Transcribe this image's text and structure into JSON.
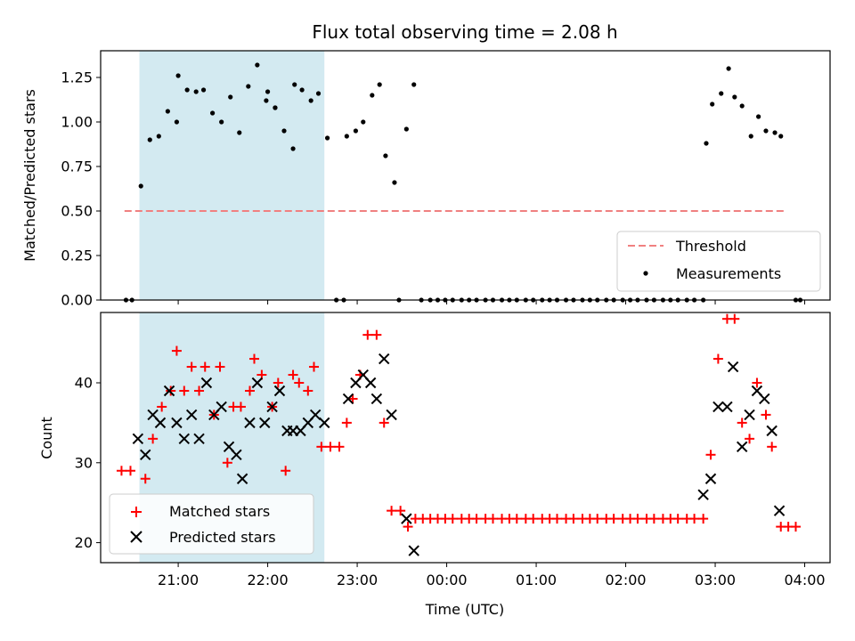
{
  "chart_data": [
    {
      "type": "scatter",
      "title": "Flux total observing time = 2.08 h",
      "xlabel": "",
      "ylabel": "Matched/Predicted stars",
      "ylim": [
        0,
        1.4
      ],
      "xlim": [
        "20:08",
        "04:17"
      ],
      "yticks": [
        "0.00",
        "0.25",
        "0.50",
        "0.75",
        "1.00",
        "1.25"
      ],
      "xtick_labels_shown": false,
      "shaded_span": [
        "20:34",
        "22:38"
      ],
      "shaded_color": "#d3eaf1",
      "threshold": {
        "value": 0.5,
        "x_range": [
          "20:24",
          "03:48"
        ],
        "color": "#f08080",
        "label": "Threshold"
      },
      "legend": {
        "position": "lower-right",
        "entries": [
          "Threshold",
          "Measurements"
        ]
      },
      "series": [
        {
          "name": "Measurements",
          "marker": "dot",
          "color": "#000000",
          "points": [
            [
              "20:25",
              0.0
            ],
            [
              "20:29",
              0.0
            ],
            [
              "20:35",
              0.64
            ],
            [
              "20:41",
              0.9
            ],
            [
              "20:47",
              0.92
            ],
            [
              "20:53",
              1.06
            ],
            [
              "20:59",
              1.0
            ],
            [
              "21:00",
              1.26
            ],
            [
              "21:06",
              1.18
            ],
            [
              "21:12",
              1.17
            ],
            [
              "21:17",
              1.18
            ],
            [
              "21:23",
              1.05
            ],
            [
              "21:29",
              1.0
            ],
            [
              "21:35",
              1.14
            ],
            [
              "21:41",
              0.94
            ],
            [
              "21:47",
              1.2
            ],
            [
              "21:53",
              1.32
            ],
            [
              "21:59",
              1.12
            ],
            [
              "22:05",
              1.08
            ],
            [
              "22:00",
              1.17
            ],
            [
              "22:05",
              1.08
            ],
            [
              "22:11",
              0.95
            ],
            [
              "22:17",
              0.85
            ],
            [
              "22:18",
              1.21
            ],
            [
              "22:23",
              1.18
            ],
            [
              "22:29",
              1.12
            ],
            [
              "22:34",
              1.16
            ],
            [
              "22:40",
              0.91
            ],
            [
              "22:46",
              0.0
            ],
            [
              "22:51",
              0.0
            ],
            [
              "22:53",
              0.92
            ],
            [
              "22:59",
              0.95
            ],
            [
              "23:04",
              1.0
            ],
            [
              "23:10",
              1.15
            ],
            [
              "23:15",
              1.21
            ],
            [
              "23:19",
              0.81
            ],
            [
              "23:25",
              0.66
            ],
            [
              "23:28",
              0.0
            ],
            [
              "23:33",
              0.96
            ],
            [
              "23:38",
              1.21
            ],
            [
              "23:43",
              0.0
            ],
            [
              "23:49",
              0.0
            ],
            [
              "23:54",
              0.0
            ],
            [
              "23:59",
              0.0
            ],
            [
              "00:04",
              0.0
            ],
            [
              "00:10",
              0.0
            ],
            [
              "00:15",
              0.0
            ],
            [
              "00:20",
              0.0
            ],
            [
              "00:26",
              0.0
            ],
            [
              "00:31",
              0.0
            ],
            [
              "00:37",
              0.0
            ],
            [
              "00:42",
              0.0
            ],
            [
              "00:47",
              0.0
            ],
            [
              "00:53",
              0.0
            ],
            [
              "00:58",
              0.0
            ],
            [
              "01:04",
              0.0
            ],
            [
              "01:09",
              0.0
            ],
            [
              "01:14",
              0.0
            ],
            [
              "01:20",
              0.0
            ],
            [
              "01:25",
              0.0
            ],
            [
              "01:31",
              0.0
            ],
            [
              "01:36",
              0.0
            ],
            [
              "01:41",
              0.0
            ],
            [
              "01:47",
              0.0
            ],
            [
              "01:52",
              0.0
            ],
            [
              "01:58",
              0.0
            ],
            [
              "02:03",
              0.0
            ],
            [
              "02:08",
              0.0
            ],
            [
              "02:14",
              0.0
            ],
            [
              "02:19",
              0.0
            ],
            [
              "02:25",
              0.0
            ],
            [
              "02:30",
              0.0
            ],
            [
              "02:35",
              0.0
            ],
            [
              "02:41",
              0.0
            ],
            [
              "02:46",
              0.0
            ],
            [
              "02:52",
              0.0
            ],
            [
              "02:54",
              0.88
            ],
            [
              "02:58",
              1.1
            ],
            [
              "03:04",
              1.16
            ],
            [
              "03:09",
              1.3
            ],
            [
              "03:13",
              1.14
            ],
            [
              "03:18",
              1.09
            ],
            [
              "03:24",
              0.92
            ],
            [
              "03:29",
              1.03
            ],
            [
              "03:34",
              0.95
            ],
            [
              "03:40",
              0.94
            ],
            [
              "03:44",
              0.92
            ],
            [
              "03:54",
              0.0
            ],
            [
              "03:57",
              0.0
            ]
          ]
        }
      ]
    },
    {
      "type": "scatter",
      "title": "",
      "xlabel": "Time (UTC)",
      "ylabel": "Count",
      "ylim": [
        17.5,
        48.8
      ],
      "xlim": [
        "20:08",
        "04:17"
      ],
      "yticks": [
        "20",
        "30",
        "40"
      ],
      "xticks": [
        "21:00",
        "22:00",
        "23:00",
        "00:00",
        "01:00",
        "02:00",
        "03:00",
        "04:00"
      ],
      "shaded_span": [
        "20:34",
        "22:38"
      ],
      "shaded_color": "#d3eaf1",
      "legend": {
        "position": "lower-left",
        "entries": [
          "Matched stars",
          "Predicted stars"
        ]
      },
      "series": [
        {
          "name": "Matched stars",
          "marker": "plus",
          "color": "#ff0000",
          "points": [
            [
              "20:22",
              29
            ],
            [
              "20:28",
              29
            ],
            [
              "20:38",
              28
            ],
            [
              "20:43",
              33
            ],
            [
              "20:49",
              37
            ],
            [
              "20:55",
              39
            ],
            [
              "20:59",
              44
            ],
            [
              "21:04",
              39
            ],
            [
              "21:09",
              42
            ],
            [
              "21:14",
              39
            ],
            [
              "21:18",
              42
            ],
            [
              "21:24",
              36
            ],
            [
              "21:28",
              42
            ],
            [
              "21:33",
              30
            ],
            [
              "21:37",
              37
            ],
            [
              "21:42",
              37
            ],
            [
              "21:48",
              39
            ],
            [
              "21:51",
              43
            ],
            [
              "21:56",
              41
            ],
            [
              "22:03",
              37
            ],
            [
              "22:07",
              40
            ],
            [
              "22:12",
              29
            ],
            [
              "22:17",
              41
            ],
            [
              "22:21",
              40
            ],
            [
              "22:27",
              39
            ],
            [
              "22:31",
              42
            ],
            [
              "22:36",
              32
            ],
            [
              "22:42",
              32
            ],
            [
              "22:48",
              32
            ],
            [
              "22:53",
              35
            ],
            [
              "22:57",
              38
            ],
            [
              "23:02",
              41
            ],
            [
              "23:07",
              46
            ],
            [
              "23:13",
              46
            ],
            [
              "23:18",
              35
            ],
            [
              "23:23",
              24
            ],
            [
              "23:29",
              24
            ],
            [
              "23:34",
              22
            ],
            [
              "23:39",
              23
            ],
            [
              "23:44",
              23
            ],
            [
              "23:49",
              23
            ],
            [
              "23:54",
              23
            ],
            [
              "23:59",
              23
            ],
            [
              "00:04",
              23
            ],
            [
              "00:10",
              23
            ],
            [
              "00:15",
              23
            ],
            [
              "00:20",
              23
            ],
            [
              "00:26",
              23
            ],
            [
              "00:31",
              23
            ],
            [
              "00:37",
              23
            ],
            [
              "00:42",
              23
            ],
            [
              "00:47",
              23
            ],
            [
              "00:53",
              23
            ],
            [
              "00:58",
              23
            ],
            [
              "01:04",
              23
            ],
            [
              "01:09",
              23
            ],
            [
              "01:14",
              23
            ],
            [
              "01:20",
              23
            ],
            [
              "01:25",
              23
            ],
            [
              "01:31",
              23
            ],
            [
              "01:36",
              23
            ],
            [
              "01:41",
              23
            ],
            [
              "01:47",
              23
            ],
            [
              "01:52",
              23
            ],
            [
              "01:58",
              23
            ],
            [
              "02:03",
              23
            ],
            [
              "02:08",
              23
            ],
            [
              "02:14",
              23
            ],
            [
              "02:19",
              23
            ],
            [
              "02:25",
              23
            ],
            [
              "02:30",
              23
            ],
            [
              "02:35",
              23
            ],
            [
              "02:41",
              23
            ],
            [
              "02:46",
              23
            ],
            [
              "02:52",
              23
            ],
            [
              "02:57",
              31
            ],
            [
              "03:02",
              43
            ],
            [
              "03:08",
              48
            ],
            [
              "03:13",
              48
            ],
            [
              "03:18",
              35
            ],
            [
              "03:23",
              33
            ],
            [
              "03:28",
              40
            ],
            [
              "03:34",
              36
            ],
            [
              "03:38",
              32
            ],
            [
              "03:44",
              22
            ],
            [
              "03:49",
              22
            ],
            [
              "03:54",
              22
            ]
          ]
        },
        {
          "name": "Predicted stars",
          "marker": "x",
          "color": "#000000",
          "points": [
            [
              "20:33",
              33
            ],
            [
              "20:38",
              31
            ],
            [
              "20:43",
              36
            ],
            [
              "20:48",
              35
            ],
            [
              "20:54",
              39
            ],
            [
              "20:59",
              35
            ],
            [
              "21:04",
              33
            ],
            [
              "21:09",
              36
            ],
            [
              "21:14",
              33
            ],
            [
              "21:19",
              40
            ],
            [
              "21:24",
              36
            ],
            [
              "21:29",
              37
            ],
            [
              "21:34",
              32
            ],
            [
              "21:39",
              31
            ],
            [
              "21:43",
              28
            ],
            [
              "21:48",
              35
            ],
            [
              "21:53",
              40
            ],
            [
              "21:58",
              35
            ],
            [
              "22:03",
              37
            ],
            [
              "22:08",
              39
            ],
            [
              "22:13",
              34
            ],
            [
              "22:17",
              34
            ],
            [
              "22:22",
              34
            ],
            [
              "22:27",
              35
            ],
            [
              "22:32",
              36
            ],
            [
              "22:38",
              35
            ],
            [
              "22:54",
              38
            ],
            [
              "22:59",
              40
            ],
            [
              "23:04",
              41
            ],
            [
              "23:09",
              40
            ],
            [
              "23:13",
              38
            ],
            [
              "23:18",
              43
            ],
            [
              "23:23",
              36
            ],
            [
              "23:33",
              23
            ],
            [
              "23:38",
              19
            ],
            [
              "02:52",
              26
            ],
            [
              "02:57",
              28
            ],
            [
              "03:02",
              37
            ],
            [
              "03:08",
              37
            ],
            [
              "03:12",
              42
            ],
            [
              "03:18",
              32
            ],
            [
              "03:23",
              36
            ],
            [
              "03:28",
              39
            ],
            [
              "03:33",
              38
            ],
            [
              "03:38",
              34
            ],
            [
              "03:43",
              24
            ]
          ]
        }
      ]
    }
  ]
}
